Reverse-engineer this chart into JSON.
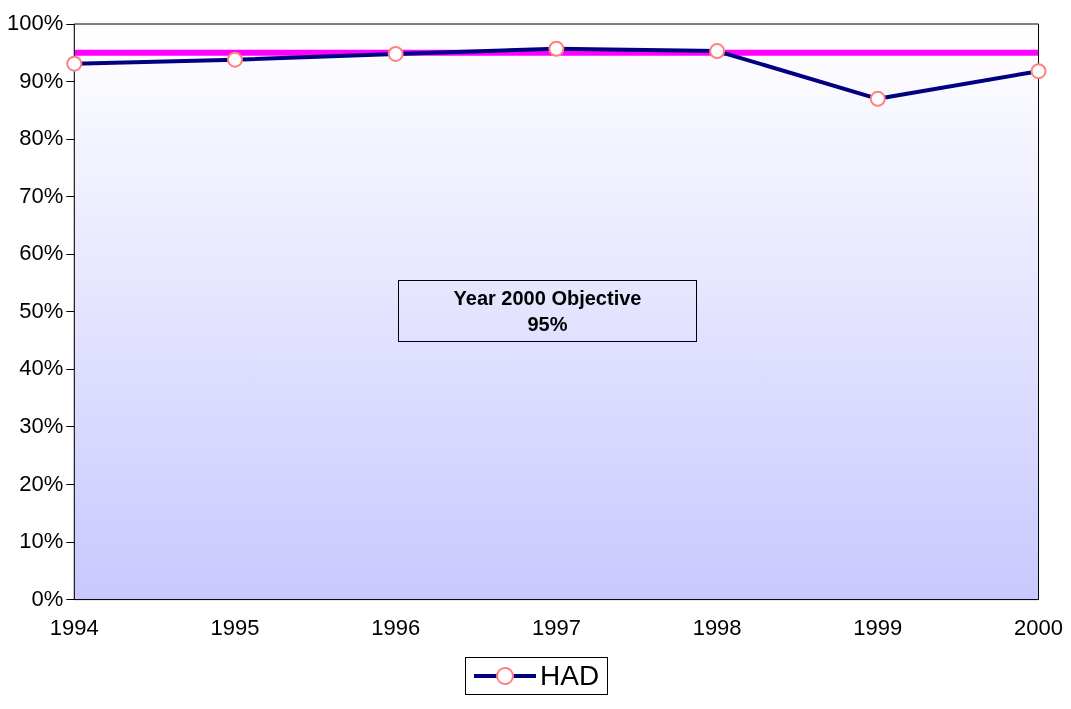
{
  "chart_data": {
    "type": "line",
    "categories": [
      "1994",
      "1995",
      "1996",
      "1997",
      "1998",
      "1999",
      "2000"
    ],
    "series": [
      {
        "name": "HAD",
        "color": "#000080",
        "values": [
          93.1,
          93.8,
          94.8,
          95.7,
          95.3,
          87.0,
          91.8
        ]
      }
    ],
    "ylim": [
      0,
      100
    ],
    "yticks": [
      {
        "value": 0,
        "label": "0%"
      },
      {
        "value": 10,
        "label": "10%"
      },
      {
        "value": 20,
        "label": "20%"
      },
      {
        "value": 30,
        "label": "30%"
      },
      {
        "value": 40,
        "label": "40%"
      },
      {
        "value": 50,
        "label": "50%"
      },
      {
        "value": 60,
        "label": "60%"
      },
      {
        "value": 70,
        "label": "70%"
      },
      {
        "value": 80,
        "label": "80%"
      },
      {
        "value": 90,
        "label": "90%"
      },
      {
        "value": 100,
        "label": "100%"
      }
    ],
    "ref_lines": [
      {
        "axis": "y",
        "value": 95,
        "color": "#ff00ff"
      }
    ],
    "annotations": [
      "Year 2000 Objective\n95%"
    ],
    "marker": "circle",
    "legend": "bottom",
    "grid": false
  }
}
